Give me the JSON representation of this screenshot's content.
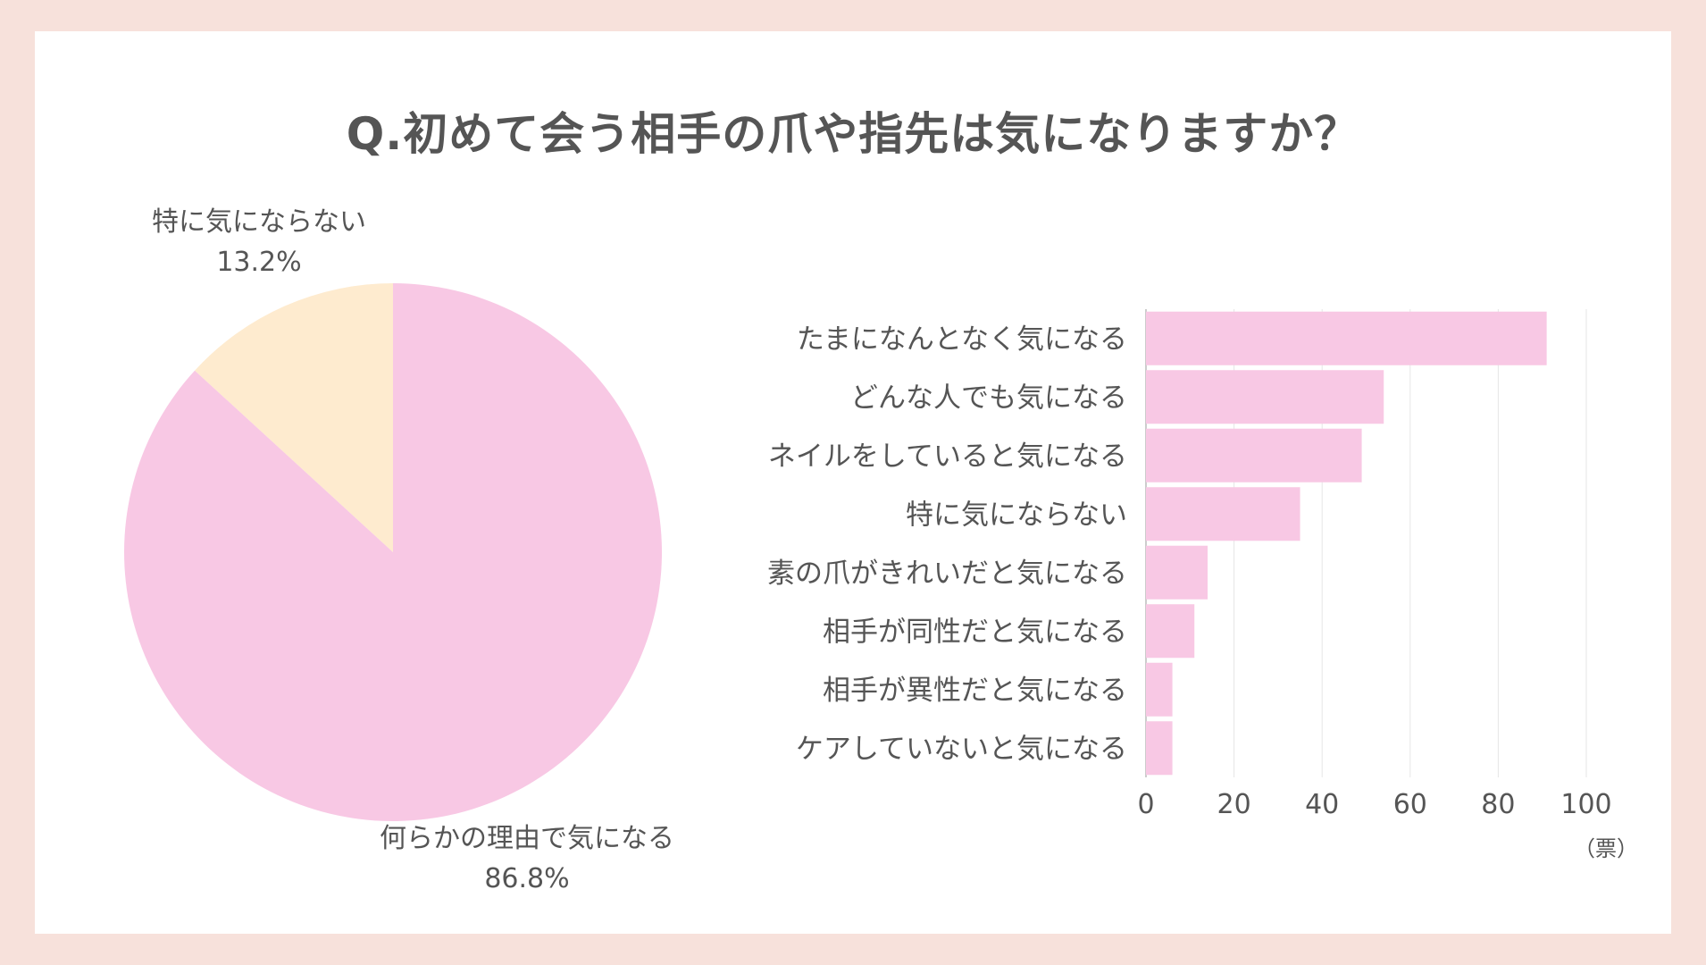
{
  "title": "Q.初めて会う相手の爪や指先は気になりますか？",
  "colors": {
    "background": "#f7e1db",
    "card": "#ffffff",
    "pink": "#f8c8e4",
    "cream": "#feebcf",
    "text": "#555555",
    "grid": "#e6e6e6"
  },
  "chart_data": [
    {
      "type": "pie",
      "title": "",
      "slices": [
        {
          "label": "特に気にならない",
          "value_label": "13.2%",
          "value": 13.2,
          "color": "#feebcf"
        },
        {
          "label": "何らかの理由で気になる",
          "value_label": "86.8%",
          "value": 86.8,
          "color": "#f8c8e4"
        }
      ],
      "start": "12 o'clock",
      "direction": "counterclockwise for first slice"
    },
    {
      "type": "bar",
      "orientation": "horizontal",
      "title": "",
      "categories": [
        "たまになんとなく気になる",
        "どんな人でも気になる",
        "ネイルをしていると気になる",
        "特に気にならない",
        "素の爪がきれいだと気になる",
        "相手が同性だと気になる",
        "相手が異性だと気になる",
        "ケアしていないと気になる"
      ],
      "values": [
        91,
        54,
        49,
        35,
        14,
        11,
        6,
        6
      ],
      "xlim": [
        0,
        100
      ],
      "xticks": [
        "0",
        "20",
        "40",
        "60",
        "80",
        "100"
      ],
      "unit_label": "（票）",
      "grid": "vertical",
      "color": "#f8c8e4"
    }
  ]
}
